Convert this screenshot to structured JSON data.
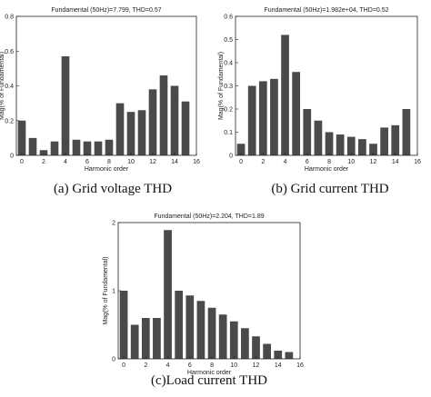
{
  "chart_data": [
    {
      "type": "bar",
      "title": "Fundamental (50Hz)=7.799, THD=0.57",
      "ylabel": "Mag(% of Fundamental)",
      "xlabel": "Harmonic order",
      "caption": "(a) Grid voltage THD",
      "x": [
        0,
        1,
        2,
        3,
        4,
        5,
        6,
        7,
        8,
        9,
        10,
        11,
        12,
        13,
        14,
        15
      ],
      "values": [
        0.2,
        0.1,
        0.03,
        0.08,
        0.57,
        0.09,
        0.08,
        0.08,
        0.09,
        0.3,
        0.25,
        0.26,
        0.38,
        0.46,
        0.4,
        0.31
      ],
      "xlim": [
        -0.5,
        16
      ],
      "ylim": [
        0,
        0.8
      ],
      "xticks": [
        "0",
        "2",
        "4",
        "6",
        "8",
        "10",
        "12",
        "14",
        "16"
      ],
      "yticks": [
        "0",
        "0.2",
        "0.4",
        "0.6",
        "0.8"
      ],
      "ytick_values": [
        0,
        0.2,
        0.4,
        0.6,
        0.8
      ]
    },
    {
      "type": "bar",
      "title": "Fundamental (50Hz)=1.982e+04, THD=0.52",
      "ylabel": "Mag(% of Fundamental)",
      "xlabel": "Harmonic order",
      "caption": "(b) Grid current THD",
      "x": [
        0,
        1,
        2,
        3,
        4,
        5,
        6,
        7,
        8,
        9,
        10,
        11,
        12,
        13,
        14,
        15
      ],
      "values": [
        0.05,
        0.3,
        0.32,
        0.33,
        0.52,
        0.36,
        0.2,
        0.15,
        0.1,
        0.09,
        0.08,
        0.07,
        0.05,
        0.12,
        0.13,
        0.2
      ],
      "xlim": [
        -0.5,
        16
      ],
      "ylim": [
        0,
        0.6
      ],
      "xticks": [
        "0",
        "2",
        "4",
        "6",
        "8",
        "10",
        "12",
        "14",
        "16"
      ],
      "yticks": [
        "0",
        "0.1",
        "0.2",
        "0.3",
        "0.4",
        "0.5",
        "0.6"
      ],
      "ytick_values": [
        0,
        0.1,
        0.2,
        0.3,
        0.4,
        0.5,
        0.6
      ]
    },
    {
      "type": "bar",
      "title": "Fundamental (50Hz)=2.204, THD=1.89",
      "ylabel": "Mag(% of Fundamental)",
      "xlabel": "Harmonic order",
      "caption": "(c)Load current THD",
      "x": [
        0,
        1,
        2,
        3,
        4,
        5,
        6,
        7,
        8,
        9,
        10,
        11,
        12,
        13,
        14,
        15
      ],
      "values": [
        1.0,
        0.5,
        0.6,
        0.6,
        1.89,
        1.0,
        0.93,
        0.85,
        0.75,
        0.65,
        0.55,
        0.45,
        0.33,
        0.22,
        0.12,
        0.1
      ],
      "xlim": [
        -0.5,
        16
      ],
      "ylim": [
        0,
        2
      ],
      "xticks": [
        "0",
        "2",
        "4",
        "6",
        "8",
        "10",
        "12",
        "14",
        "16"
      ],
      "yticks": [
        "0",
        "1",
        "2"
      ],
      "ytick_values": [
        0,
        1,
        2
      ]
    }
  ]
}
